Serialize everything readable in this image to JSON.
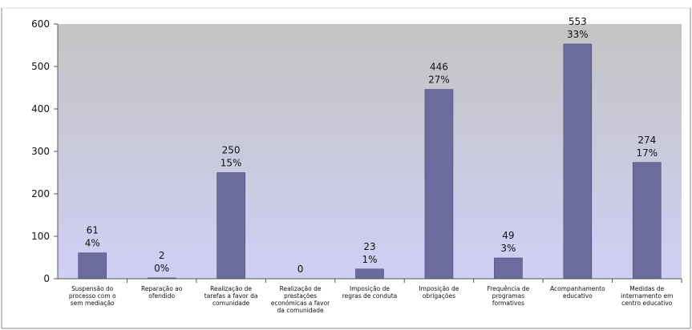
{
  "chart_data": {
    "type": "bar",
    "categories": [
      [
        "Suspensão do",
        "processo com o",
        "sem mediação"
      ],
      [
        "Reparação ao",
        "ofendido"
      ],
      [
        "Realização de",
        "tarefas a favor da",
        "comunidade"
      ],
      [
        "Realização de",
        "prestações",
        "económicas a favor",
        "da comunidade"
      ],
      [
        "Imposição de",
        "regras de conduta"
      ],
      [
        "Imposição de",
        "obrigações"
      ],
      [
        "Frequência de",
        "programas",
        "formativos"
      ],
      [
        "Acompanhamento",
        "educativo"
      ],
      [
        "Medidas de",
        "internamento em",
        "centro educativo"
      ]
    ],
    "values": [
      61,
      2,
      250,
      0,
      23,
      446,
      49,
      553,
      274
    ],
    "value_labels": [
      "61",
      "2",
      "250",
      "0",
      "23",
      "446",
      "49",
      "553",
      "274"
    ],
    "percent_labels": [
      "4%",
      "0%",
      "15%",
      "",
      "1%",
      "27%",
      "3%",
      "33%",
      "17%"
    ],
    "ylim": [
      0,
      600
    ],
    "yticks": [
      "0",
      "100",
      "200",
      "300",
      "400",
      "500",
      "600"
    ],
    "grid": false,
    "legend": "none",
    "colors": {
      "bar": "#6b6b9c",
      "bar_edge": "#4a4a78",
      "plot_top": "#c4c4c4",
      "plot_bottom": "#cfcff6",
      "axis": "#555555",
      "text": "#111111"
    }
  }
}
